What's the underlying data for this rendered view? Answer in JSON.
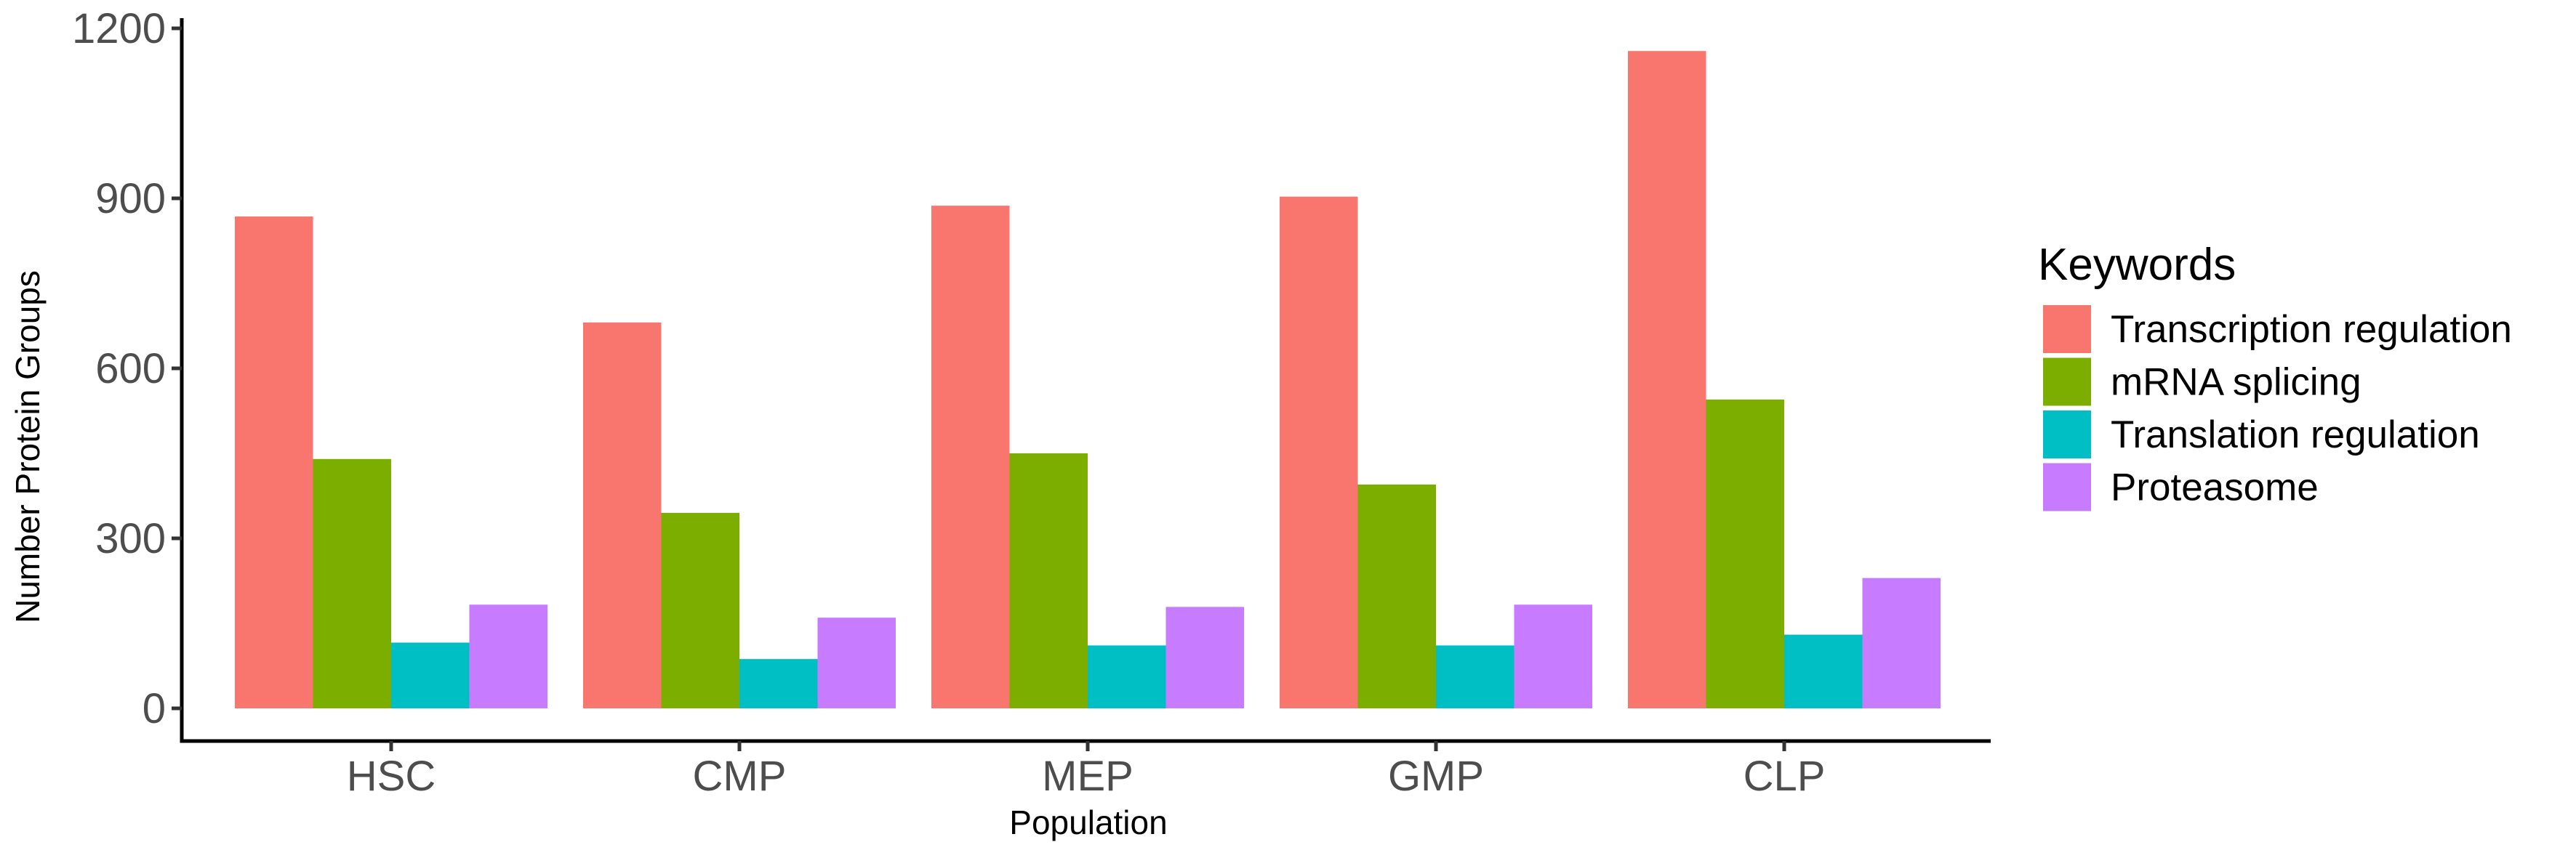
{
  "chart_data": {
    "type": "bar",
    "title": "",
    "xlabel": "Population",
    "ylabel": "Number Protein Groups",
    "categories": [
      "HSC",
      "CMP",
      "MEP",
      "GMP",
      "CLP"
    ],
    "ylim": [
      0,
      1200
    ],
    "yticks": [
      0,
      300,
      600,
      900,
      1200
    ],
    "grid": false,
    "legend": {
      "title": "Keywords",
      "placement": "right"
    },
    "series": [
      {
        "name": "Transcription regulation",
        "color": "#F8766D",
        "values": [
          868,
          681,
          887,
          903,
          1160
        ]
      },
      {
        "name": "mRNA splicing",
        "color": "#7CAE00",
        "values": [
          440,
          345,
          450,
          395,
          545
        ]
      },
      {
        "name": "Translation regulation",
        "color": "#00BFC4",
        "values": [
          116,
          87,
          111,
          111,
          130
        ]
      },
      {
        "name": "Proteasome",
        "color": "#C77CFF",
        "values": [
          183,
          160,
          179,
          183,
          230
        ]
      }
    ]
  }
}
